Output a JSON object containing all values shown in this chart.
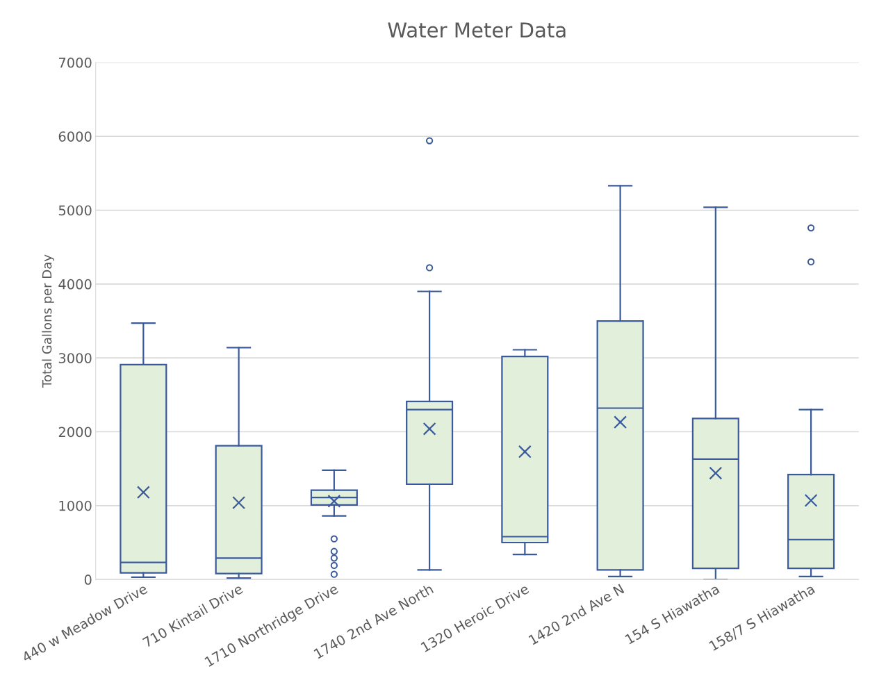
{
  "chart_data": {
    "type": "box",
    "title": "Water Meter Data",
    "ylabel": "Total Gallons per Day",
    "categories": [
      "440 w Meadow Drive",
      "710 Kintail Drive",
      "1710 Northridge Drive",
      "1740 2nd Ave North",
      "1320 Heroic Drive",
      "1420 2nd Ave N",
      "154 S Hiawatha",
      "158/7 S Hiawatha"
    ],
    "boxes": [
      {
        "low": 30,
        "q1": 90,
        "median": 230,
        "q3": 2910,
        "high": 3470,
        "mean": 1180
      },
      {
        "low": 20,
        "q1": 80,
        "median": 290,
        "q3": 1810,
        "high": 3140,
        "mean": 1040
      },
      {
        "low": 860,
        "q1": 1010,
        "median": 1110,
        "q3": 1210,
        "high": 1480,
        "mean": 1060,
        "outliers": [
          550,
          380,
          290,
          190,
          70
        ]
      },
      {
        "low": 130,
        "q1": 1290,
        "median": 2300,
        "q3": 2410,
        "high": 3900,
        "mean": 2040,
        "outliers": [
          4220,
          5940
        ]
      },
      {
        "low": 340,
        "q1": 500,
        "median": 580,
        "q3": 3020,
        "high": 3110,
        "mean": 1730
      },
      {
        "low": 40,
        "q1": 130,
        "median": 2320,
        "q3": 3500,
        "high": 5330,
        "mean": 2130
      },
      {
        "low": 0,
        "q1": 150,
        "median": 1630,
        "q3": 2180,
        "high": 5040,
        "mean": 1440
      },
      {
        "low": 40,
        "q1": 150,
        "median": 540,
        "q3": 1420,
        "high": 2300,
        "mean": 1070,
        "outliers": [
          4300,
          4760
        ]
      }
    ],
    "color": "#3a5a9c",
    "ylim": [
      0,
      7000
    ],
    "yticks": [
      0,
      1000,
      2000,
      3000,
      4000,
      5000,
      6000,
      7000
    ],
    "grid": "y"
  }
}
